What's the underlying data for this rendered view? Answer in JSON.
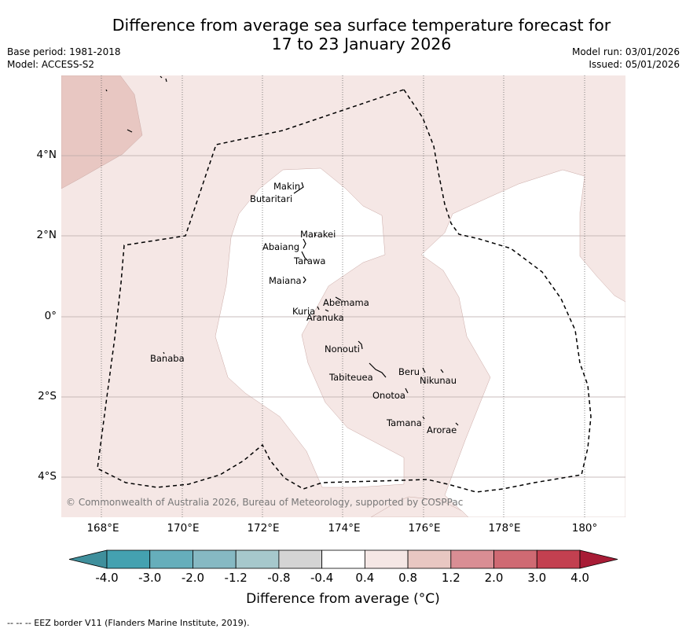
{
  "title": {
    "line1": "Difference from average sea surface temperature forecast for",
    "line2": "17 to 23 January 2026"
  },
  "meta": {
    "base_period": "Base period: 1981-2018",
    "model": "Model: ACCESS-S2",
    "model_run": "Model run: 03/01/2026",
    "issued": "Issued: 05/01/2026"
  },
  "axes": {
    "lat_labels": [
      "4°N",
      "2°N",
      "0°",
      "2°S",
      "4°S"
    ],
    "lon_labels": [
      "168°E",
      "170°E",
      "172°E",
      "174°E",
      "176°E",
      "178°E",
      "180°"
    ]
  },
  "places": [
    {
      "name": "Makin"
    },
    {
      "name": "Butaritari"
    },
    {
      "name": "Marakei"
    },
    {
      "name": "Abaiang"
    },
    {
      "name": "Tarawa"
    },
    {
      "name": "Maiana"
    },
    {
      "name": "Abemama"
    },
    {
      "name": "Kuria"
    },
    {
      "name": "Aranuka"
    },
    {
      "name": "Nonouti"
    },
    {
      "name": "Banaba"
    },
    {
      "name": "Tabiteuea"
    },
    {
      "name": "Beru"
    },
    {
      "name": "Nikunau"
    },
    {
      "name": "Onotoa"
    },
    {
      "name": "Tamana"
    },
    {
      "name": "Arorae"
    }
  ],
  "copyright": "© Commonwealth of Australia 2026, Bureau of Meteorology, supported by COSPPac",
  "colorbar": {
    "ticks": [
      "-4.0",
      "-3.0",
      "-2.0",
      "-1.2",
      "-0.8",
      "-0.4",
      "0.4",
      "0.8",
      "1.2",
      "2.0",
      "3.0",
      "4.0"
    ],
    "colors": [
      "#44a1b0",
      "#66aebb",
      "#86b9c3",
      "#a6c8cc",
      "#d4d4d4",
      "#ffffff",
      "#f5e7e5",
      "#e8c7c2",
      "#d98e94",
      "#cf6a73",
      "#c34050"
    ],
    "under_color": "#3f8f9c",
    "over_color": "#a81c36",
    "label": "Difference from average (°C)"
  },
  "footnote": "--  --  -- EEZ border V11 (Flanders Marine Institute, 2019)."
}
